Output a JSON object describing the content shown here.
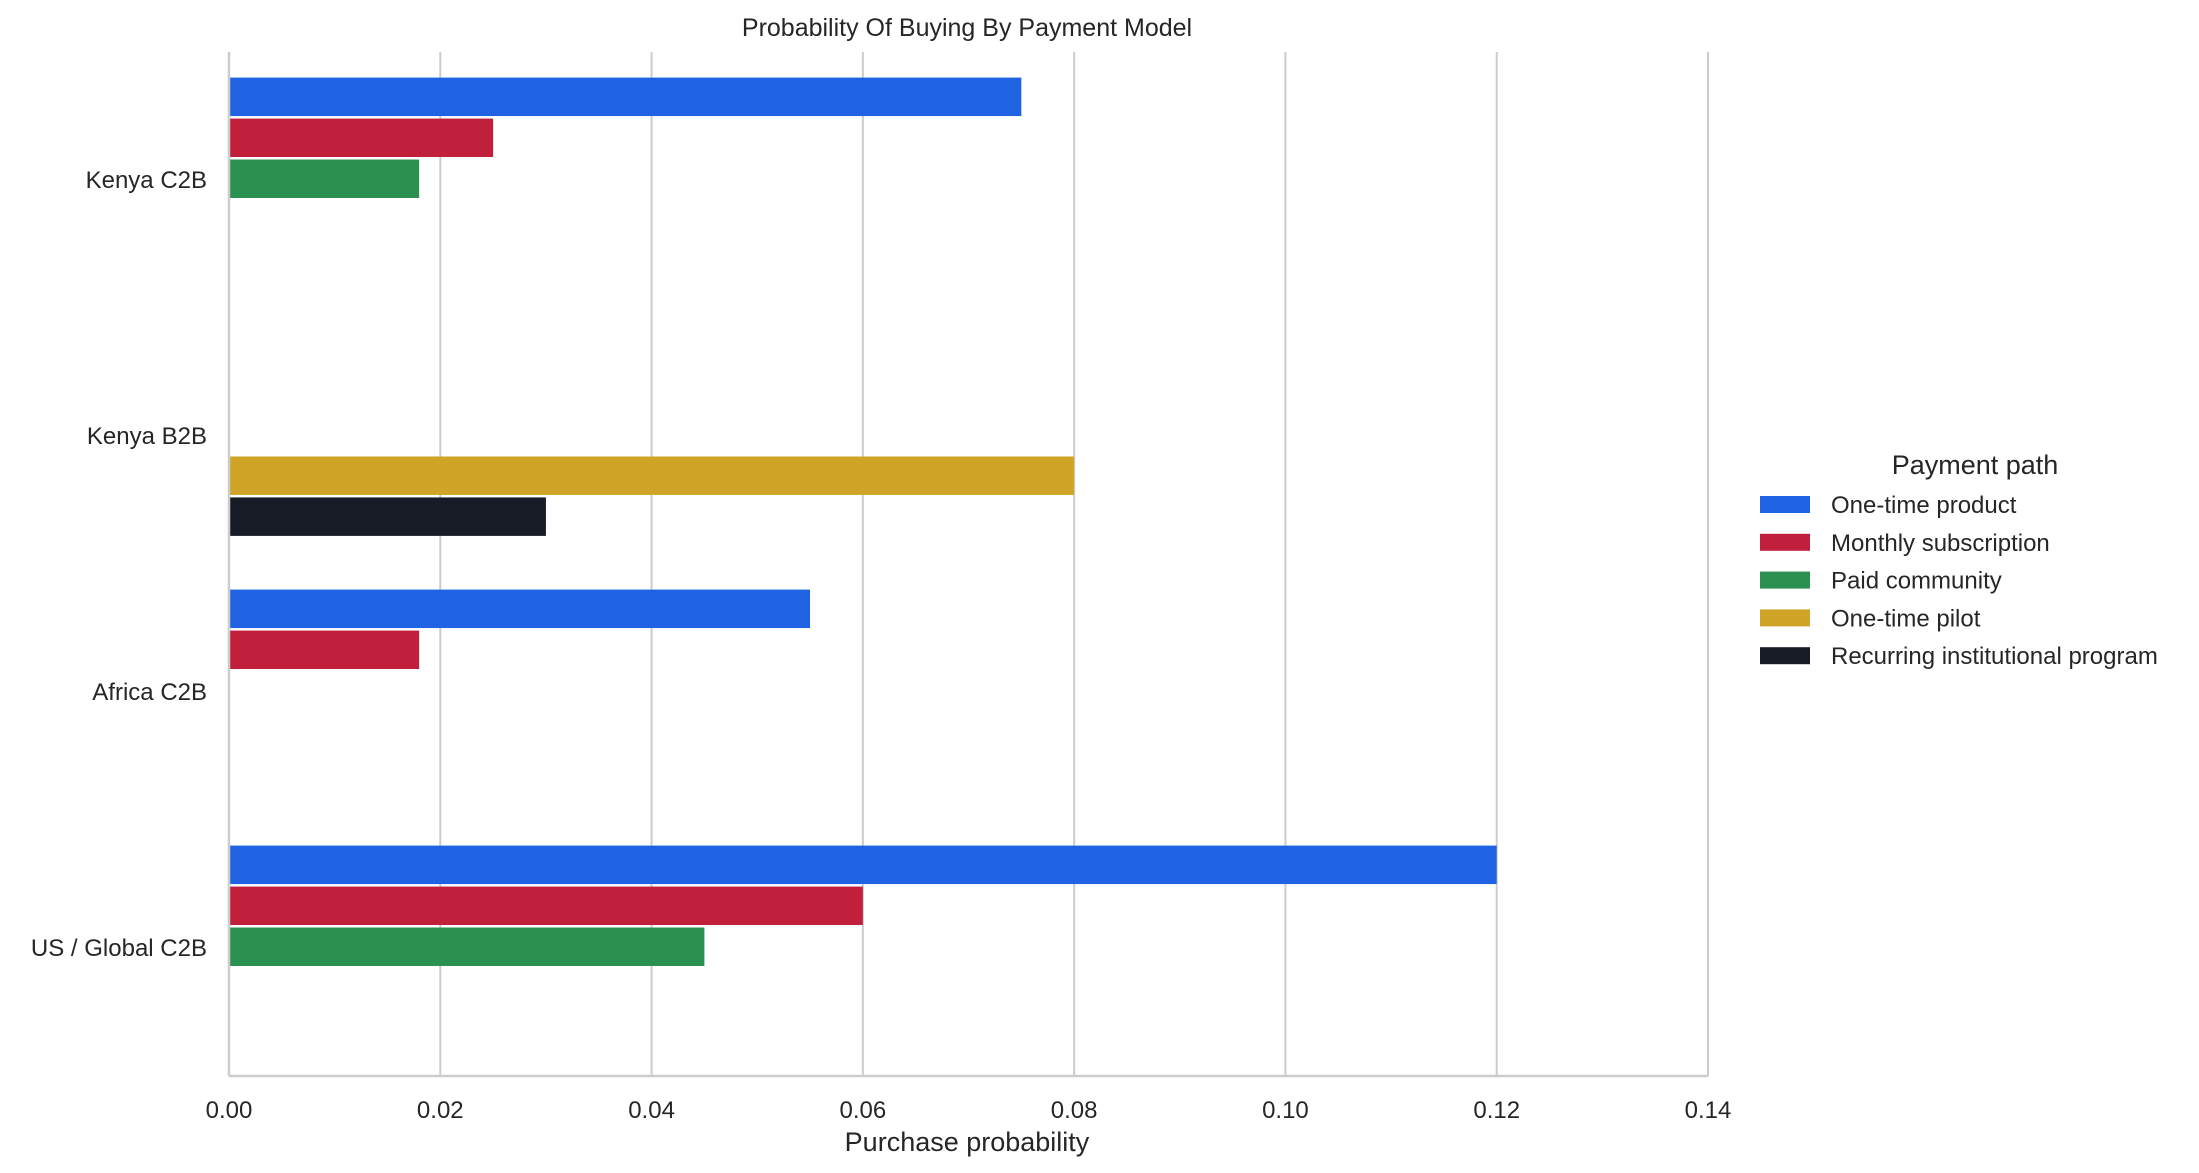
{
  "chart_data": {
    "type": "bar",
    "orientation": "horizontal",
    "title": "Probability Of Buying By Payment Model",
    "xlabel": "Purchase probability",
    "ylabel": "",
    "xlim": [
      0,
      0.14
    ],
    "xticks": [
      "0.00",
      "0.02",
      "0.04",
      "0.06",
      "0.08",
      "0.10",
      "0.12",
      "0.14"
    ],
    "grid": "vertical",
    "legend_title": "Payment path",
    "legend_position": "right",
    "categories": [
      "Kenya C2B",
      "Kenya B2B",
      "Africa C2B",
      "US / Global C2B"
    ],
    "series": [
      {
        "name": "One-time product",
        "color": "#1f63e2",
        "values": [
          0.075,
          null,
          0.055,
          0.12
        ]
      },
      {
        "name": "Monthly subscription",
        "color": "#c0203c",
        "values": [
          0.025,
          null,
          0.018,
          0.06
        ]
      },
      {
        "name": "Paid community",
        "color": "#2a9150",
        "values": [
          0.018,
          null,
          null,
          0.045
        ]
      },
      {
        "name": "One-time pilot",
        "color": "#d0a527",
        "values": [
          null,
          0.08,
          null,
          null
        ]
      },
      {
        "name": "Recurring institutional program",
        "color": "#161b26",
        "values": [
          null,
          0.03,
          null,
          null
        ]
      }
    ]
  }
}
